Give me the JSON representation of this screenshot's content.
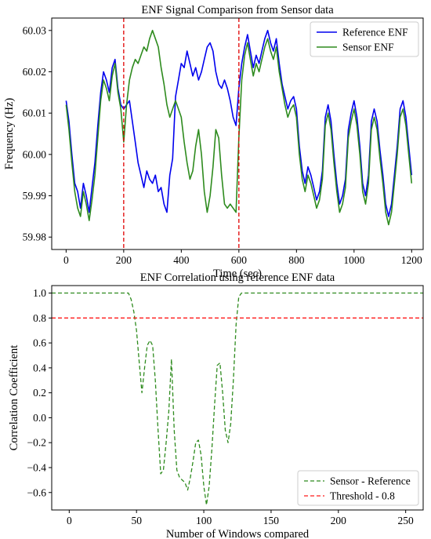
{
  "chart_data": [
    {
      "type": "line",
      "title": "ENF Signal Comparison from Sensor data",
      "xlabel": "Time (sec)",
      "ylabel": "Frequency (Hz)",
      "xlim": [
        -50,
        1240
      ],
      "ylim": [
        59.977,
        60.033
      ],
      "xticks": [
        0,
        200,
        400,
        600,
        800,
        1000,
        1200
      ],
      "xtick_labels": [
        "0",
        "200",
        "400",
        "600",
        "800",
        "1000",
        "1200"
      ],
      "yticks": [
        59.98,
        59.99,
        60.0,
        60.01,
        60.02,
        60.03
      ],
      "ytick_labels": [
        "59.98",
        "59.99",
        "60.00",
        "60.01",
        "60.02",
        "60.03"
      ],
      "legend": "top-right",
      "grid": false,
      "vlines": [
        {
          "x": 200,
          "color": "#e00000",
          "style": "dashed"
        },
        {
          "x": 600,
          "color": "#e00000",
          "style": "dashed"
        }
      ],
      "series": [
        {
          "name": "Reference ENF",
          "color": "#0000ee",
          "x": [
            0,
            10,
            20,
            30,
            40,
            50,
            60,
            70,
            80,
            90,
            100,
            110,
            120,
            130,
            140,
            150,
            160,
            170,
            180,
            190,
            200,
            210,
            220,
            230,
            240,
            250,
            260,
            270,
            280,
            290,
            300,
            310,
            320,
            330,
            340,
            350,
            360,
            370,
            380,
            390,
            400,
            410,
            420,
            430,
            440,
            450,
            460,
            470,
            480,
            490,
            500,
            510,
            520,
            530,
            540,
            550,
            560,
            570,
            580,
            590,
            600,
            610,
            620,
            630,
            640,
            650,
            660,
            670,
            680,
            690,
            700,
            710,
            720,
            730,
            740,
            750,
            760,
            770,
            780,
            790,
            800,
            810,
            820,
            830,
            840,
            850,
            860,
            870,
            880,
            890,
            900,
            910,
            920,
            930,
            940,
            950,
            960,
            970,
            980,
            990,
            1000,
            1010,
            1020,
            1030,
            1040,
            1050,
            1060,
            1070,
            1080,
            1090,
            1100,
            1110,
            1120,
            1130,
            1140,
            1150,
            1160,
            1170,
            1180,
            1190,
            1200
          ],
          "y": [
            60.013,
            60.008,
            60.0,
            59.993,
            59.991,
            59.987,
            59.993,
            59.99,
            59.986,
            59.992,
            59.998,
            60.007,
            60.015,
            60.02,
            60.018,
            60.015,
            60.021,
            60.023,
            60.016,
            60.012,
            60.011,
            60.012,
            60.013,
            60.008,
            60.003,
            59.998,
            59.995,
            59.992,
            59.996,
            59.994,
            59.993,
            59.995,
            59.991,
            59.992,
            59.988,
            59.986,
            59.995,
            59.999,
            60.014,
            60.018,
            60.022,
            60.021,
            60.025,
            60.022,
            60.019,
            60.021,
            60.018,
            60.02,
            60.023,
            60.026,
            60.027,
            60.025,
            60.02,
            60.017,
            60.016,
            60.018,
            60.016,
            60.013,
            60.009,
            60.007,
            60.016,
            60.022,
            60.026,
            60.029,
            60.025,
            60.021,
            60.024,
            60.022,
            60.025,
            60.028,
            60.03,
            60.027,
            60.025,
            60.028,
            60.022,
            60.017,
            60.014,
            60.011,
            60.013,
            60.014,
            60.011,
            60.002,
            59.996,
            59.993,
            59.997,
            59.995,
            59.992,
            59.989,
            59.991,
            59.996,
            60.009,
            60.012,
            60.008,
            60.0,
            59.993,
            59.988,
            59.99,
            59.994,
            60.006,
            60.01,
            60.013,
            60.009,
            60.002,
            59.993,
            59.99,
            59.995,
            60.008,
            60.011,
            60.008,
            60.001,
            59.995,
            59.988,
            59.985,
            59.988,
            59.995,
            60.002,
            60.011,
            60.013,
            60.009,
            60.002,
            59.995
          ]
        },
        {
          "name": "Sensor ENF",
          "color": "#2e8b1e",
          "x": [
            0,
            10,
            20,
            30,
            40,
            50,
            60,
            70,
            80,
            90,
            100,
            110,
            120,
            130,
            140,
            150,
            160,
            170,
            180,
            190,
            200,
            210,
            220,
            230,
            240,
            250,
            260,
            270,
            280,
            290,
            300,
            310,
            320,
            330,
            340,
            350,
            360,
            370,
            380,
            390,
            400,
            410,
            420,
            430,
            440,
            450,
            460,
            470,
            480,
            490,
            500,
            510,
            520,
            530,
            540,
            550,
            560,
            570,
            580,
            590,
            600,
            610,
            620,
            630,
            640,
            650,
            660,
            670,
            680,
            690,
            700,
            710,
            720,
            730,
            740,
            750,
            760,
            770,
            780,
            790,
            800,
            810,
            820,
            830,
            840,
            850,
            860,
            870,
            880,
            890,
            900,
            910,
            920,
            930,
            940,
            950,
            960,
            970,
            980,
            990,
            1000,
            1010,
            1020,
            1030,
            1040,
            1050,
            1060,
            1070,
            1080,
            1090,
            1100,
            1110,
            1120,
            1130,
            1140,
            1150,
            1160,
            1170,
            1180,
            1190,
            1200
          ],
          "y": [
            60.012,
            60.006,
            59.998,
            59.991,
            59.987,
            59.985,
            59.991,
            59.988,
            59.984,
            59.989,
            59.995,
            60.004,
            60.013,
            60.018,
            60.016,
            60.013,
            60.019,
            60.022,
            60.015,
            60.011,
            60.003,
            60.012,
            60.018,
            60.021,
            60.023,
            60.022,
            60.024,
            60.026,
            60.025,
            60.028,
            60.03,
            60.028,
            60.026,
            60.021,
            60.017,
            60.012,
            60.009,
            60.011,
            60.013,
            60.011,
            60.009,
            60.003,
            59.998,
            59.994,
            59.996,
            60.002,
            60.006,
            60.0,
            59.991,
            59.986,
            59.99,
            59.997,
            60.006,
            60.004,
            59.995,
            59.988,
            59.987,
            59.988,
            59.987,
            59.986,
            60.004,
            60.018,
            60.024,
            60.027,
            60.023,
            60.019,
            60.022,
            60.02,
            60.023,
            60.026,
            60.028,
            60.025,
            60.023,
            60.026,
            60.02,
            60.016,
            60.012,
            60.009,
            60.011,
            60.012,
            60.009,
            60.0,
            59.994,
            59.991,
            59.995,
            59.993,
            59.99,
            59.987,
            59.989,
            59.994,
            60.007,
            60.01,
            60.006,
            59.998,
            59.991,
            59.986,
            59.988,
            59.992,
            60.004,
            60.008,
            60.011,
            60.007,
            60.0,
            59.991,
            59.988,
            59.993,
            60.006,
            60.009,
            60.006,
            59.999,
            59.993,
            59.986,
            59.983,
            59.986,
            59.993,
            60.0,
            60.009,
            60.011,
            60.007,
            60.0,
            59.993
          ]
        }
      ]
    },
    {
      "type": "line",
      "title": "ENF Correlation using reference ENF data",
      "xlabel": "Number of Windows compared",
      "ylabel": "Correlation Coefficient",
      "xlim": [
        -13,
        263
      ],
      "ylim": [
        -0.74,
        1.06
      ],
      "xticks": [
        0,
        50,
        100,
        150,
        200,
        250
      ],
      "xtick_labels": [
        "0",
        "50",
        "100",
        "150",
        "200",
        "250"
      ],
      "yticks": [
        -0.6,
        -0.4,
        -0.2,
        0.0,
        0.2,
        0.4,
        0.6,
        0.8,
        1.0
      ],
      "ytick_labels": [
        "−0.6",
        "−0.4",
        "−0.2",
        "0.0",
        "0.2",
        "0.4",
        "0.6",
        "0.8",
        "1.0"
      ],
      "legend": "lower-right",
      "grid": false,
      "series": [
        {
          "name": "Sensor - Reference",
          "color": "#2e8b1e",
          "style": "dashed",
          "x": [
            -13,
            0,
            44,
            46,
            48,
            50,
            52,
            54,
            56,
            58,
            60,
            62,
            64,
            66,
            68,
            70,
            72,
            74,
            76,
            78,
            80,
            82,
            84,
            86,
            88,
            90,
            92,
            94,
            96,
            98,
            100,
            102,
            104,
            106,
            108,
            110,
            112,
            114,
            116,
            118,
            120,
            122,
            124,
            126,
            128,
            130,
            135,
            150,
            263
          ],
          "y": [
            1.0,
            1.0,
            1.0,
            0.95,
            0.85,
            0.7,
            0.45,
            0.2,
            0.4,
            0.58,
            0.62,
            0.58,
            0.3,
            -0.1,
            -0.45,
            -0.42,
            -0.2,
            0.05,
            0.47,
            -0.1,
            -0.42,
            -0.48,
            -0.5,
            -0.52,
            -0.58,
            -0.48,
            -0.35,
            -0.2,
            -0.18,
            -0.3,
            -0.55,
            -0.7,
            -0.55,
            -0.25,
            0.1,
            0.42,
            0.44,
            0.2,
            -0.1,
            -0.2,
            -0.05,
            0.3,
            0.75,
            0.97,
            1.0,
            1.0,
            1.0,
            1.0,
            1.0
          ]
        },
        {
          "name": "Threshold - 0.8",
          "color": "#ff1a1a",
          "style": "dashed",
          "x": [
            -13,
            263
          ],
          "y": [
            0.8,
            0.8
          ]
        }
      ]
    }
  ]
}
